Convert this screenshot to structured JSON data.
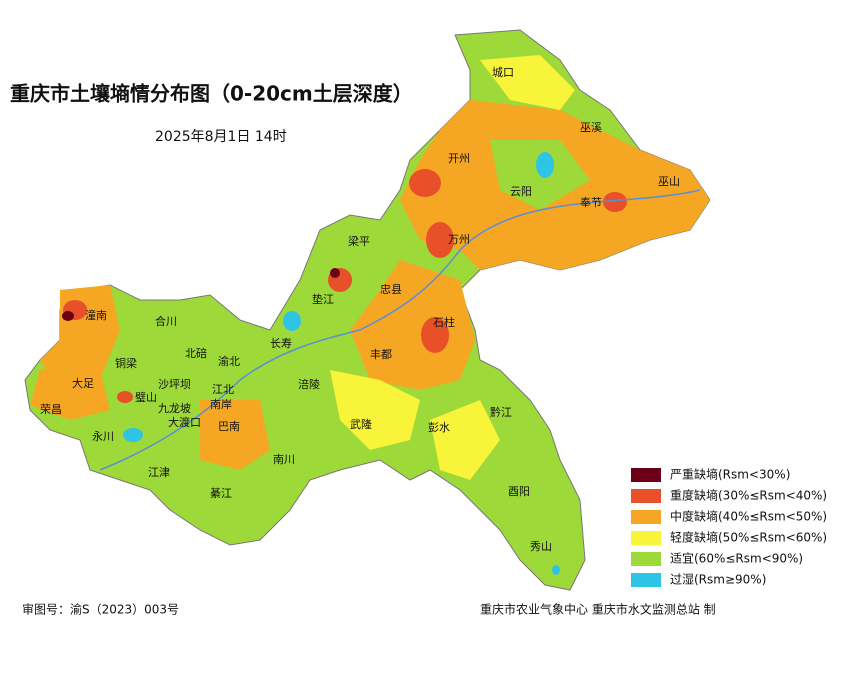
{
  "header": {
    "title": "重庆市土壤墒情分布图（0-20cm土层深度）",
    "date": "2025年8月1日 14时"
  },
  "districts": [
    "城口",
    "巫溪",
    "开州",
    "云阳",
    "奉节",
    "巫山",
    "梁平",
    "万州",
    "垫江",
    "忠县",
    "石柱",
    "潼南",
    "合川",
    "长寿",
    "铜梁",
    "北碚",
    "渝北",
    "大足",
    "璧山",
    "沙坪坝",
    "江北",
    "九龙坡",
    "南岸",
    "荣昌",
    "永川",
    "大渡口",
    "巴南",
    "丰都",
    "涪陵",
    "武隆",
    "彭水",
    "黔江",
    "江津",
    "南川",
    "綦江",
    "酉阳",
    "秀山"
  ],
  "legend": [
    {
      "label": "严重缺墒(Rsm<30%)",
      "color": "#6b0016"
    },
    {
      "label": "重度缺墒(30%≤Rsm<40%)",
      "color": "#e8502a"
    },
    {
      "label": "中度缺墒(40%≤Rsm<50%)",
      "color": "#f5a623"
    },
    {
      "label": "轻度缺墒(50%≤Rsm<60%)",
      "color": "#f7f43a"
    },
    {
      "label": "适宜(60%≤Rsm<90%)",
      "color": "#9ed93a"
    },
    {
      "label": "过湿(Rsm≥90%)",
      "color": "#2ec4e6"
    }
  ],
  "footer": {
    "approval": "审图号：渝S（2023）003号",
    "producer": "重庆市农业气象中心 重庆市水文监测总站 制"
  }
}
